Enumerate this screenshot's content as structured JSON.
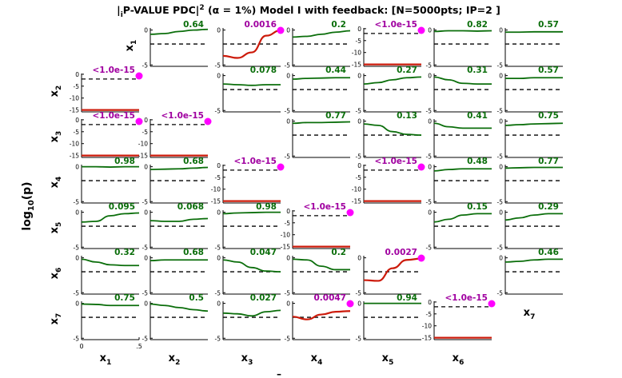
{
  "title_prefix": "|",
  "title_sub": "i",
  "title_main": "P-VALUE PDC|",
  "title_sup": "2",
  "title_rest": " (α = 1%) Model I with feedback: [N=5000pts; IP=2 ]",
  "ylabel_main": "log",
  "ylabel_sub": "10",
  "ylabel_rest": "(p)",
  "row_labels": [
    {
      "base": "x",
      "sub": "1"
    },
    {
      "base": "x",
      "sub": "2"
    },
    {
      "base": "x",
      "sub": "3"
    },
    {
      "base": "x",
      "sub": "4"
    },
    {
      "base": "x",
      "sub": "5"
    },
    {
      "base": "x",
      "sub": "6"
    },
    {
      "base": "x",
      "sub": "7"
    }
  ],
  "col_labels": [
    {
      "base": "x",
      "sub": "1"
    },
    {
      "base": "x",
      "sub": "2"
    },
    {
      "base": "x",
      "sub": "3"
    },
    {
      "base": "x",
      "sub": "4"
    },
    {
      "base": "x",
      "sub": "5"
    },
    {
      "base": "x",
      "sub": "6"
    },
    {
      "base": "x",
      "sub": "7"
    }
  ],
  "bottom_dash": "–",
  "colors": {
    "nonsig": "#0b6e0b",
    "sig": "#cc1a0a",
    "sig_label": "#a000a0",
    "nonsig_label": "#0b6e0b",
    "dot": "#ff00ff",
    "threshold": "#000000"
  },
  "chart_data": {
    "type": "line",
    "title": "P-VALUE PDC (α = 1%) Model I with feedback: [N=5000pts; IP=2 ]",
    "ylabel": "log10(p)",
    "x_ticks": [
      "0",
      ".5"
    ],
    "y_ticks_normal": [
      "0",
      "-5"
    ],
    "y_ticks_deep": [
      "0",
      "-5",
      "-10",
      "-15"
    ],
    "alpha_percent": 1,
    "cells": [
      {
        "row": 1,
        "col": 2,
        "label": "0.64",
        "sig": false,
        "deep": false,
        "shape": [
          -0.6,
          -0.5,
          -0.2,
          0,
          0.1
        ]
      },
      {
        "row": 1,
        "col": 3,
        "label": "0.0016",
        "sig": true,
        "deep": false,
        "shape": [
          -3.7,
          -4.0,
          -3.2,
          -0.8,
          -0.05
        ]
      },
      {
        "row": 1,
        "col": 4,
        "label": "0.2",
        "sig": false,
        "deep": false,
        "shape": [
          -1.0,
          -0.9,
          -0.6,
          -0.3,
          -0.1
        ]
      },
      {
        "row": 1,
        "col": 5,
        "label": "<1.0e-15",
        "sig": true,
        "deep": true,
        "shape": [
          -15,
          -15,
          -15,
          -15,
          -15
        ]
      },
      {
        "row": 1,
        "col": 6,
        "label": "0.82",
        "sig": false,
        "deep": false,
        "shape": [
          -0.2,
          -0.1,
          -0.1,
          -0.15,
          -0.1
        ]
      },
      {
        "row": 1,
        "col": 7,
        "label": "0.57",
        "sig": false,
        "deep": false,
        "shape": [
          -0.3,
          -0.3,
          -0.25,
          -0.25,
          -0.25
        ]
      },
      {
        "row": 2,
        "col": 1,
        "label": "<1.0e-15",
        "sig": true,
        "deep": true,
        "shape": [
          -15,
          -15,
          -15,
          -15,
          -15
        ]
      },
      {
        "row": 2,
        "col": 3,
        "label": "0.078",
        "sig": false,
        "deep": false,
        "shape": [
          -1.2,
          -1.3,
          -1.4,
          -1.3,
          -1.3
        ]
      },
      {
        "row": 2,
        "col": 4,
        "label": "0.44",
        "sig": false,
        "deep": false,
        "shape": [
          -0.5,
          -0.4,
          -0.35,
          -0.3,
          -0.3
        ]
      },
      {
        "row": 2,
        "col": 5,
        "label": "0.27",
        "sig": false,
        "deep": false,
        "shape": [
          -1.2,
          -1.0,
          -0.6,
          -0.3,
          -0.2
        ]
      },
      {
        "row": 2,
        "col": 6,
        "label": "0.31",
        "sig": false,
        "deep": false,
        "shape": [
          -0.2,
          -0.6,
          -1.1,
          -1.2,
          -1.2
        ]
      },
      {
        "row": 2,
        "col": 7,
        "label": "0.57",
        "sig": false,
        "deep": false,
        "shape": [
          -0.4,
          -0.4,
          -0.3,
          -0.3,
          -0.3
        ]
      },
      {
        "row": 3,
        "col": 1,
        "label": "<1.0e-15",
        "sig": true,
        "deep": true,
        "shape": [
          -15,
          -15,
          -15,
          -15,
          -15
        ]
      },
      {
        "row": 3,
        "col": 2,
        "label": "<1.0e-15",
        "sig": true,
        "deep": true,
        "shape": [
          -15,
          -15,
          -15,
          -15,
          -15
        ]
      },
      {
        "row": 3,
        "col": 4,
        "label": "0.77",
        "sig": false,
        "deep": false,
        "shape": [
          -0.3,
          -0.2,
          -0.2,
          -0.15,
          -0.1
        ]
      },
      {
        "row": 3,
        "col": 5,
        "label": "0.13",
        "sig": false,
        "deep": false,
        "shape": [
          -0.4,
          -0.6,
          -1.5,
          -1.9,
          -2.0
        ]
      },
      {
        "row": 3,
        "col": 6,
        "label": "0.41",
        "sig": false,
        "deep": false,
        "shape": [
          -0.3,
          -0.8,
          -1.0,
          -1.0,
          -1.0
        ]
      },
      {
        "row": 3,
        "col": 7,
        "label": "0.75",
        "sig": false,
        "deep": false,
        "shape": [
          -0.6,
          -0.5,
          -0.4,
          -0.35,
          -0.3
        ]
      },
      {
        "row": 4,
        "col": 1,
        "label": "0.98",
        "sig": false,
        "deep": false,
        "shape": [
          0,
          0,
          -0.05,
          0,
          0
        ]
      },
      {
        "row": 4,
        "col": 2,
        "label": "0.68",
        "sig": false,
        "deep": false,
        "shape": [
          -0.4,
          -0.35,
          -0.3,
          -0.2,
          -0.1
        ]
      },
      {
        "row": 4,
        "col": 3,
        "label": "<1.0e-15",
        "sig": true,
        "deep": true,
        "shape": [
          -15,
          -15,
          -15,
          -15,
          -15
        ]
      },
      {
        "row": 4,
        "col": 5,
        "label": "<1.0e-15",
        "sig": true,
        "deep": true,
        "shape": [
          -15,
          -15,
          -15,
          -15,
          -15
        ]
      },
      {
        "row": 4,
        "col": 6,
        "label": "0.48",
        "sig": false,
        "deep": false,
        "shape": [
          -0.6,
          -0.4,
          -0.3,
          -0.3,
          -0.3
        ]
      },
      {
        "row": 4,
        "col": 7,
        "label": "0.77",
        "sig": false,
        "deep": false,
        "shape": [
          -0.2,
          -0.15,
          -0.1,
          -0.1,
          -0.1
        ]
      },
      {
        "row": 5,
        "col": 1,
        "label": "0.095",
        "sig": false,
        "deep": false,
        "shape": [
          -1.4,
          -1.3,
          -0.5,
          -0.2,
          -0.1
        ]
      },
      {
        "row": 5,
        "col": 2,
        "label": "0.068",
        "sig": false,
        "deep": false,
        "shape": [
          -1.2,
          -1.3,
          -1.3,
          -1.0,
          -0.9
        ]
      },
      {
        "row": 5,
        "col": 3,
        "label": "0.98",
        "sig": false,
        "deep": false,
        "shape": [
          -0.2,
          -0.1,
          -0.05,
          0,
          0
        ]
      },
      {
        "row": 5,
        "col": 4,
        "label": "<1.0e-15",
        "sig": true,
        "deep": true,
        "shape": [
          -15,
          -15,
          -15,
          -15,
          -15
        ]
      },
      {
        "row": 5,
        "col": 6,
        "label": "0.15",
        "sig": false,
        "deep": false,
        "shape": [
          -1.4,
          -1.0,
          -0.4,
          -0.2,
          -0.2
        ]
      },
      {
        "row": 5,
        "col": 7,
        "label": "0.29",
        "sig": false,
        "deep": false,
        "shape": [
          -1.1,
          -0.8,
          -0.4,
          -0.2,
          -0.2
        ]
      },
      {
        "row": 6,
        "col": 1,
        "label": "0.32",
        "sig": false,
        "deep": false,
        "shape": [
          -0.2,
          -0.6,
          -1.0,
          -1.1,
          -1.1
        ]
      },
      {
        "row": 6,
        "col": 2,
        "label": "0.68",
        "sig": false,
        "deep": false,
        "shape": [
          -0.4,
          -0.3,
          -0.3,
          -0.3,
          -0.3
        ]
      },
      {
        "row": 6,
        "col": 3,
        "label": "0.047",
        "sig": false,
        "deep": false,
        "shape": [
          -0.3,
          -0.6,
          -1.4,
          -1.9,
          -2.0
        ]
      },
      {
        "row": 6,
        "col": 4,
        "label": "0.2",
        "sig": false,
        "deep": false,
        "shape": [
          -0.2,
          -0.3,
          -1.2,
          -1.7,
          -1.7
        ]
      },
      {
        "row": 6,
        "col": 5,
        "label": "0.0027",
        "sig": true,
        "deep": false,
        "shape": [
          -3.2,
          -3.3,
          -1.5,
          -0.3,
          -0.1
        ]
      },
      {
        "row": 6,
        "col": 7,
        "label": "0.46",
        "sig": false,
        "deep": false,
        "shape": [
          -0.6,
          -0.5,
          -0.3,
          -0.2,
          -0.2
        ]
      },
      {
        "row": 7,
        "col": 1,
        "label": "0.75",
        "sig": false,
        "deep": false,
        "shape": [
          -0.1,
          -0.15,
          -0.3,
          -0.3,
          -0.3
        ]
      },
      {
        "row": 7,
        "col": 2,
        "label": "0.5",
        "sig": false,
        "deep": false,
        "shape": [
          -0.1,
          -0.3,
          -0.6,
          -0.9,
          -1.1
        ]
      },
      {
        "row": 7,
        "col": 3,
        "label": "0.027",
        "sig": false,
        "deep": false,
        "shape": [
          -1.4,
          -1.5,
          -1.8,
          -1.2,
          -1.0
        ]
      },
      {
        "row": 7,
        "col": 4,
        "label": "0.0047",
        "sig": true,
        "deep": false,
        "shape": [
          -1.9,
          -2.3,
          -1.6,
          -1.2,
          -1.1
        ]
      },
      {
        "row": 7,
        "col": 5,
        "label": "0.94",
        "sig": false,
        "deep": false,
        "shape": [
          0,
          0,
          0,
          0,
          0
        ]
      },
      {
        "row": 7,
        "col": 6,
        "label": "<1.0e-15",
        "sig": true,
        "deep": true,
        "shape": [
          -15,
          -15,
          -15,
          -15,
          -15
        ]
      }
    ]
  }
}
